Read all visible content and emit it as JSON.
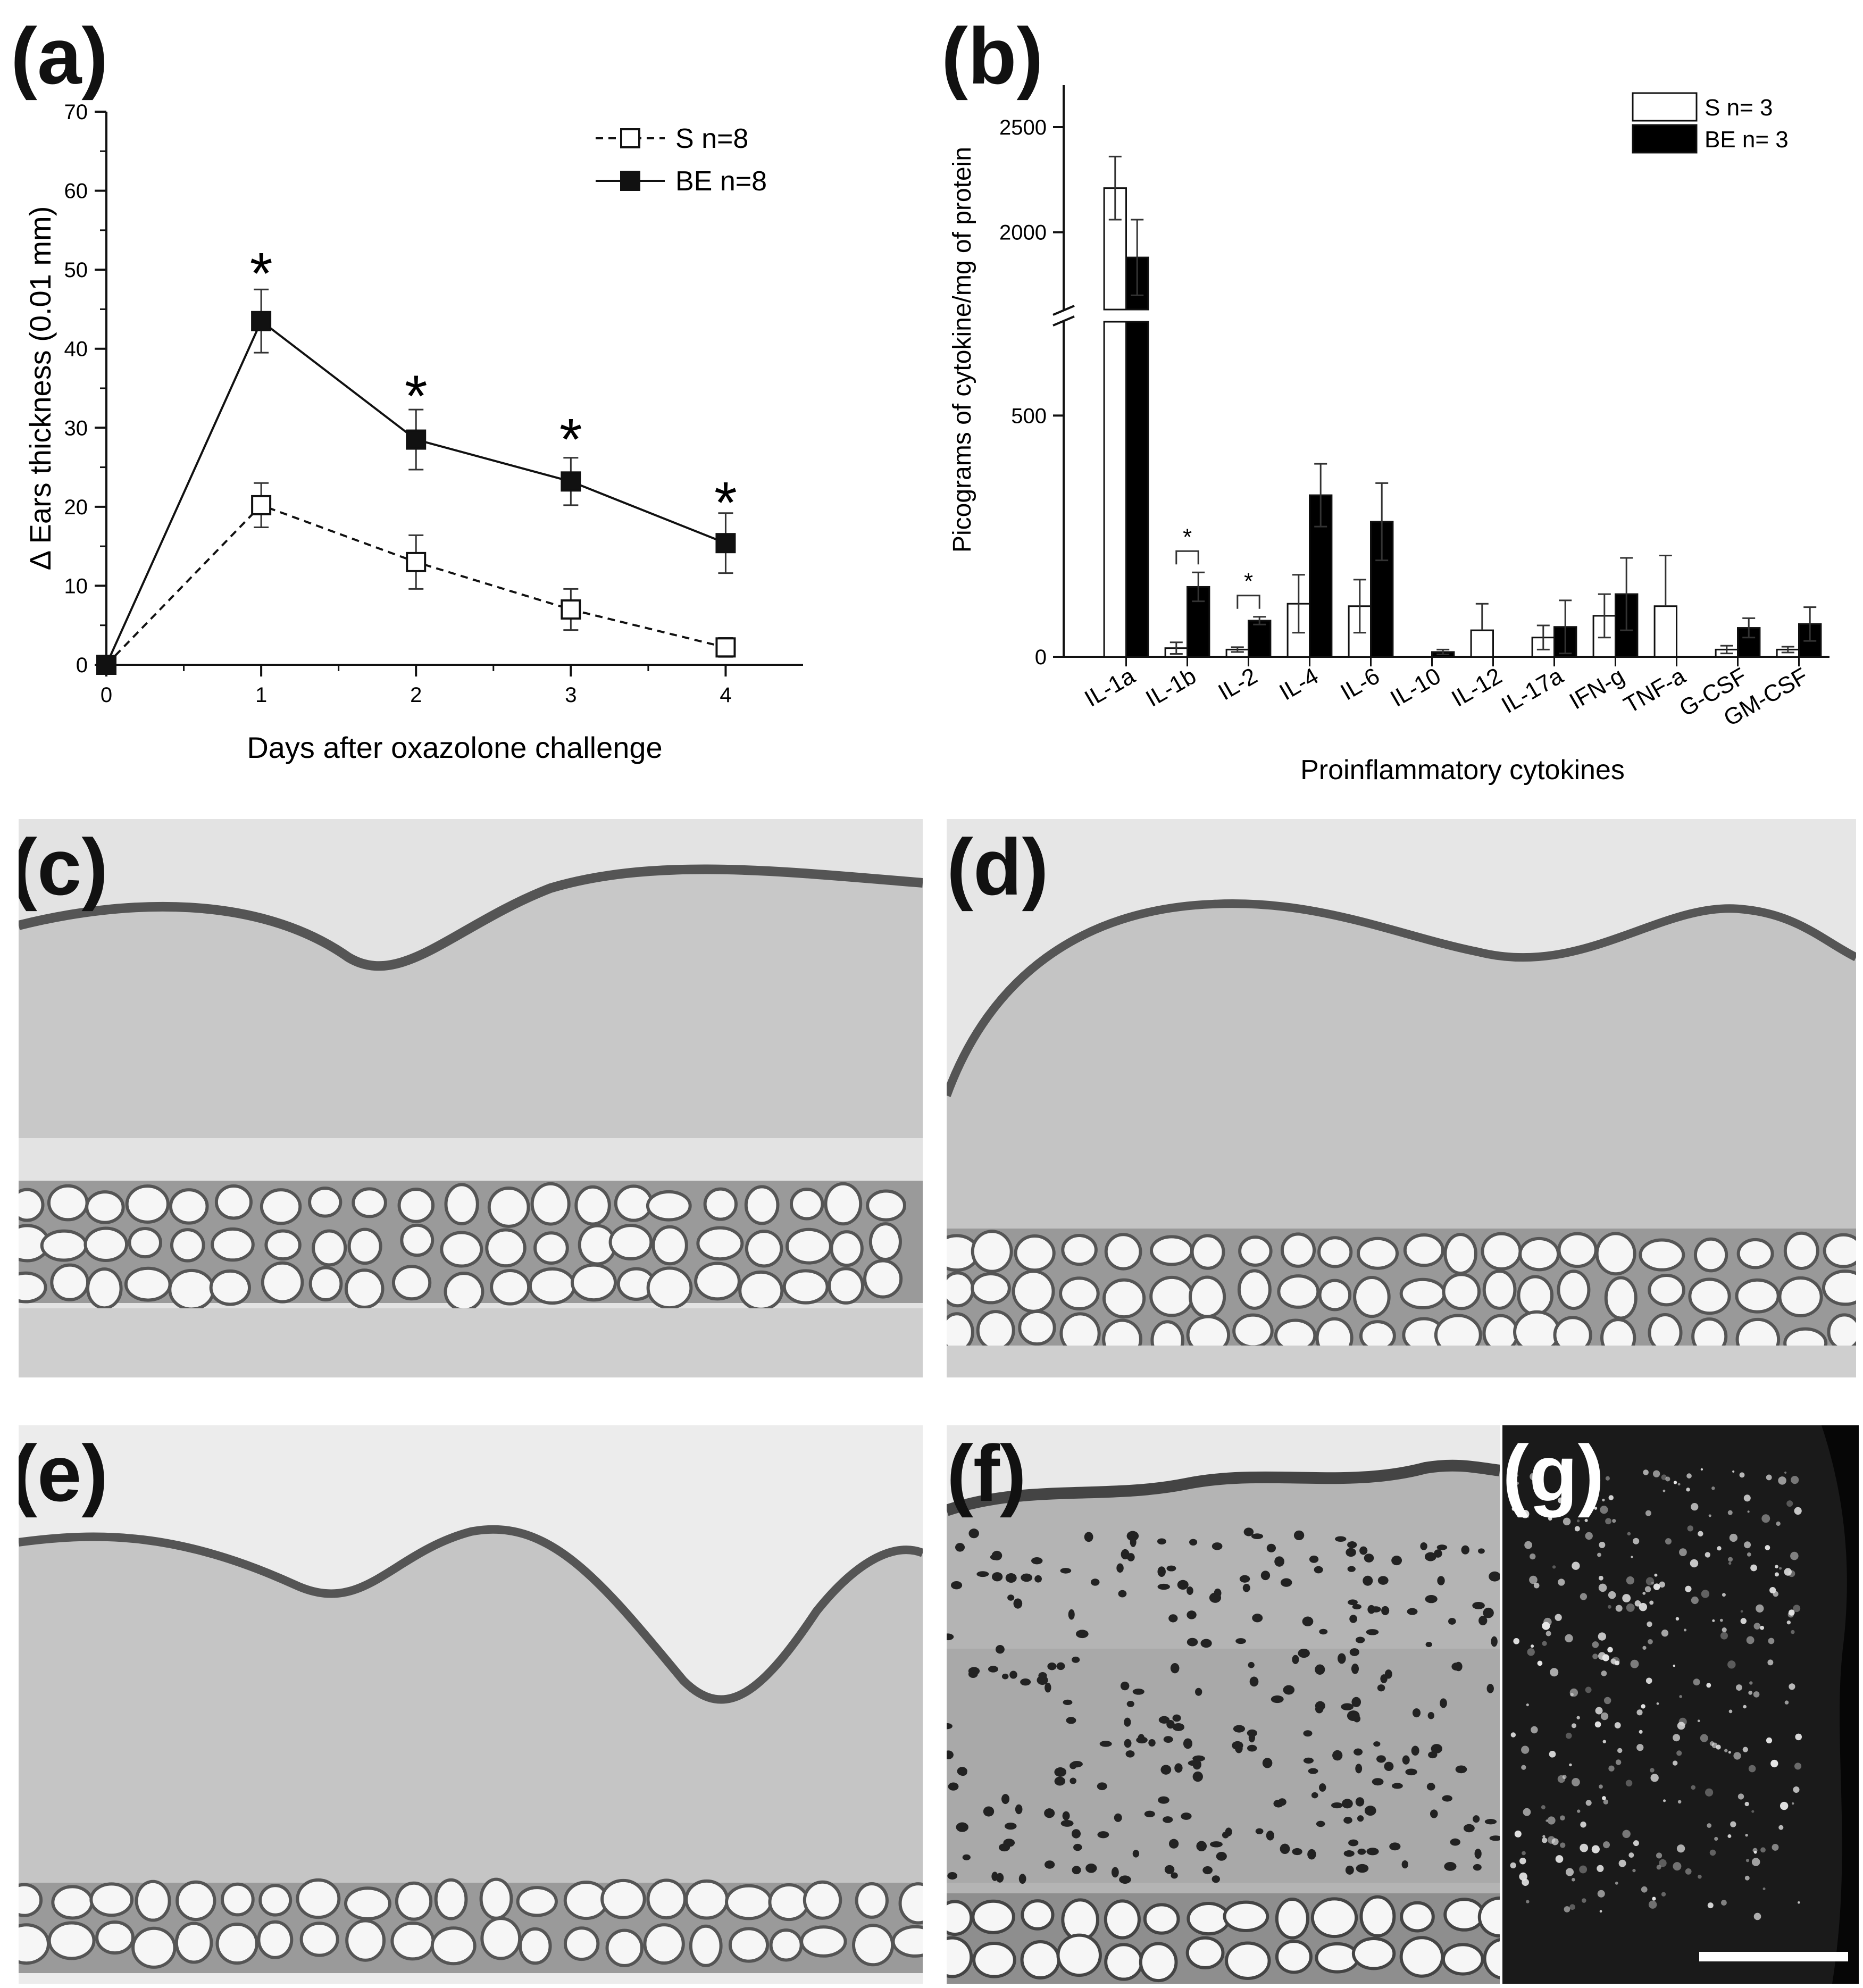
{
  "panels": {
    "a": "(a)",
    "b": "(b)",
    "c": "(c)",
    "d": "(d)",
    "e": "(e)",
    "f": "(f)",
    "g": "(g)"
  },
  "chart_data": [
    {
      "type": "line",
      "panel": "a",
      "xlabel": "Days after oxazolone challenge",
      "ylabel": "Δ Ears thickness (0.01 mm)",
      "xlim": [
        0,
        4.5
      ],
      "ylim": [
        0,
        70
      ],
      "xticks": [
        0,
        1,
        2,
        3,
        4
      ],
      "yticks": [
        0,
        10,
        20,
        30,
        40,
        50,
        60,
        70
      ],
      "legend_position": "top-right",
      "series": [
        {
          "name": "S n=8",
          "style": "dashed",
          "marker": "open-square",
          "x": [
            0,
            1,
            2,
            3,
            4
          ],
          "y": [
            0,
            20.2,
            13,
            7,
            2.2
          ],
          "err": [
            0,
            2.8,
            3.4,
            2.6,
            1.2
          ]
        },
        {
          "name": "BE n=8",
          "style": "solid",
          "marker": "filled-square",
          "x": [
            0,
            1,
            2,
            3,
            4
          ],
          "y": [
            0,
            43.5,
            28.5,
            23.2,
            15.4
          ],
          "err": [
            0,
            4,
            3.8,
            3,
            3.8
          ]
        }
      ],
      "annotations": [
        {
          "x": 1,
          "y": 50,
          "text": "*"
        },
        {
          "x": 2,
          "y": 34.5,
          "text": "*"
        },
        {
          "x": 3,
          "y": 29,
          "text": "*"
        },
        {
          "x": 4,
          "y": 21,
          "text": "*"
        }
      ]
    },
    {
      "type": "bar",
      "panel": "b",
      "xlabel": "Proinflammatory cytokines",
      "ylabel": "Picograms of cytokine/mg of protein",
      "axis_break": [
        700,
        1650
      ],
      "yticks": [
        0,
        500,
        2000,
        2500
      ],
      "ylim": [
        0,
        2700
      ],
      "legend_position": "top-right",
      "categories": [
        "IL-1a",
        "IL-1b",
        "IL-2",
        "IL-4",
        "IL-6",
        "IL-10",
        "IL-12",
        "IL-17a",
        "IFN-g",
        "TNF-a",
        "G-CSF",
        "GM-CSF"
      ],
      "series": [
        {
          "name": "S n= 3",
          "fill": "#ffffff",
          "values": [
            2210,
            18,
            15,
            110,
            105,
            0,
            55,
            40,
            85,
            105,
            15,
            15
          ],
          "err": [
            150,
            12,
            5,
            60,
            55,
            0,
            55,
            25,
            45,
            105,
            8,
            6
          ]
        },
        {
          "name": "BE n= 3",
          "fill": "#000000",
          "values": [
            1880,
            145,
            75,
            335,
            280,
            10,
            0,
            62,
            130,
            0,
            60,
            68
          ],
          "err": [
            180,
            30,
            8,
            65,
            80,
            5,
            0,
            55,
            75,
            0,
            20,
            35
          ]
        }
      ],
      "annotations": [
        {
          "category": "IL-1b",
          "text": "*"
        },
        {
          "category": "IL-2",
          "text": "*"
        }
      ]
    }
  ],
  "colors": {
    "ink": "#111111",
    "tissue_bg": "#dcdcdc",
    "fluorescence_bg": "#050505"
  }
}
